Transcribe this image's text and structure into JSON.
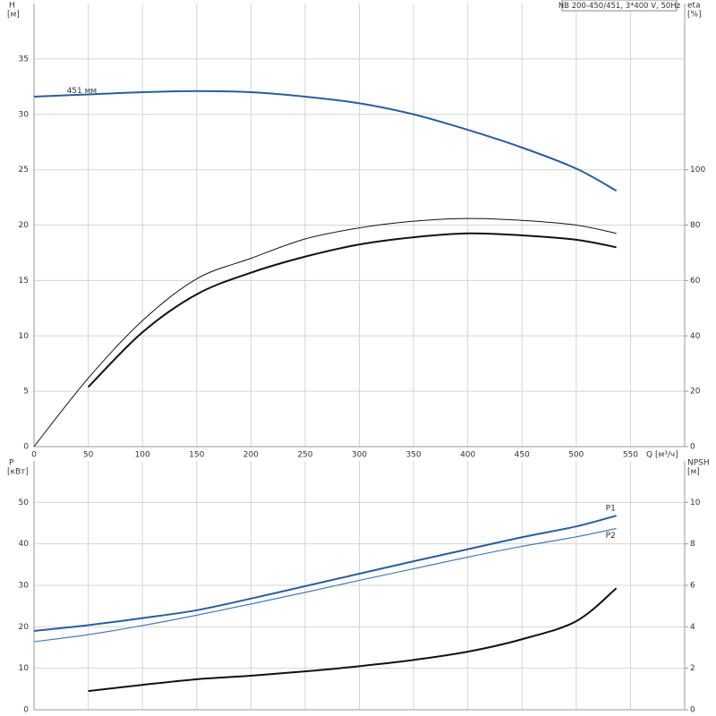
{
  "chart_data": [
    {
      "type": "line",
      "title": "NB 200-450/451, 3*400 V, 50Hz",
      "ylabel": "H",
      "ylabel_unit": "[м]",
      "y2label": "eta",
      "y2label_unit": "[%]",
      "xlabel": "Q [м³/ч]",
      "x": [
        0,
        50,
        100,
        150,
        200,
        250,
        300,
        350,
        400,
        450,
        500,
        537
      ],
      "xlim": [
        0,
        600
      ],
      "xticks": [
        0,
        50,
        100,
        150,
        200,
        250,
        300,
        350,
        400,
        450,
        500,
        550
      ],
      "xtick_labels": true,
      "ylim": [
        0,
        40
      ],
      "yticks": [
        0,
        5,
        10,
        15,
        20,
        25,
        30,
        35
      ],
      "y2lim": [
        0,
        160
      ],
      "y2ticks": [
        0,
        20,
        40,
        60,
        80,
        100
      ],
      "series": [
        {
          "name": "451 мм",
          "color": "#2a5d9b",
          "line_width": 2,
          "values": [
            31.6,
            31.8,
            32.0,
            32.1,
            32.0,
            31.6,
            31.0,
            30.0,
            28.6,
            27.0,
            25.1,
            23.1
          ]
        },
        {
          "color": "#111111",
          "line_width": 1,
          "axis": "y2",
          "values": [
            0,
            24.7,
            45.5,
            60.6,
            68.0,
            75.0,
            79.0,
            81.4,
            82.4,
            81.7,
            80.0,
            77.0
          ]
        },
        {
          "color": "#111111",
          "line_width": 2,
          "axis": "y2",
          "values": [
            null,
            21.5,
            41.3,
            55.0,
            62.8,
            68.6,
            73.0,
            75.6,
            77.0,
            76.3,
            74.7,
            72.0
          ]
        }
      ]
    },
    {
      "type": "line",
      "ylabel": "P",
      "ylabel_unit": "[кВт]",
      "y2label": "NPSH",
      "y2label_unit": "[м]",
      "x": [
        0,
        50,
        100,
        150,
        200,
        250,
        300,
        350,
        400,
        450,
        500,
        537
      ],
      "xlim": [
        0,
        600
      ],
      "xticks": [
        0,
        50,
        100,
        150,
        200,
        250,
        300,
        350,
        400,
        450,
        500,
        550
      ],
      "xtick_labels": false,
      "ylim": [
        0,
        60
      ],
      "yticks": [
        0,
        10,
        20,
        30,
        40,
        50
      ],
      "y2lim": [
        0,
        12
      ],
      "y2ticks": [
        0,
        2,
        4,
        6,
        8,
        10
      ],
      "series": [
        {
          "name": "P1",
          "color": "#2a5d9b",
          "line_width": 2,
          "values": [
            19.0,
            20.4,
            22.1,
            24.0,
            26.8,
            29.8,
            32.8,
            35.8,
            38.7,
            41.6,
            44.2,
            46.8
          ]
        },
        {
          "name": "P2",
          "color": "#4a7bb5",
          "line_width": 1.2,
          "values": [
            16.4,
            18.1,
            20.3,
            22.8,
            25.5,
            28.3,
            31.2,
            34.0,
            36.8,
            39.4,
            41.7,
            43.7
          ]
        },
        {
          "color": "#111111",
          "line_width": 2,
          "axis": "y2",
          "values": [
            null,
            0.9,
            1.2,
            1.47,
            1.64,
            1.85,
            2.1,
            2.4,
            2.8,
            3.4,
            4.27,
            5.86
          ]
        }
      ]
    }
  ]
}
